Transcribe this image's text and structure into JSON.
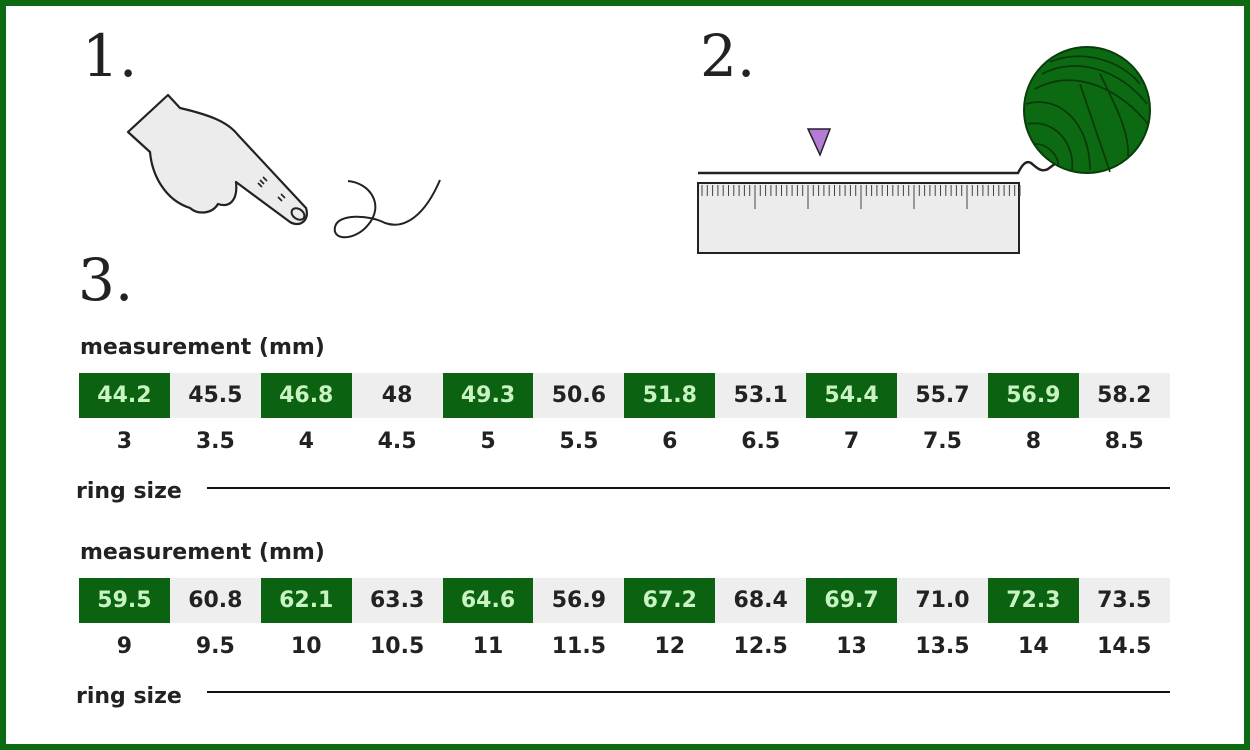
{
  "steps": [
    "1.",
    "2.",
    "3."
  ],
  "colors": {
    "accent": "#0b6210",
    "accent_text": "#c9f3c2",
    "marker": "#b57bd6",
    "band": "#eeeeee"
  },
  "icons": [
    "pointing-hand-icon",
    "thread-icon",
    "ruler-icon",
    "yarn-ball-icon",
    "marker-arrow-icon"
  ],
  "tables": [
    {
      "measurement_label": "measurement (mm)",
      "measurements": [
        "44.2",
        "45.5",
        "46.8",
        "48",
        "49.3",
        "50.6",
        "51.8",
        "53.1",
        "54.4",
        "55.7",
        "56.9",
        "58.2"
      ],
      "sizes": [
        "3",
        "3.5",
        "4",
        "4.5",
        "5",
        "5.5",
        "6",
        "6.5",
        "7",
        "7.5",
        "8",
        "8.5"
      ],
      "ring_size_label": "ring size"
    },
    {
      "measurement_label": "measurement (mm)",
      "measurements": [
        "59.5",
        "60.8",
        "62.1",
        "63.3",
        "64.6",
        "56.9",
        "67.2",
        "68.4",
        "69.7",
        "71.0",
        "72.3",
        "73.5"
      ],
      "sizes": [
        "9",
        "9.5",
        "10",
        "10.5",
        "11",
        "11.5",
        "12",
        "12.5",
        "13",
        "13.5",
        "14",
        "14.5"
      ],
      "ring_size_label": "ring size"
    }
  ]
}
